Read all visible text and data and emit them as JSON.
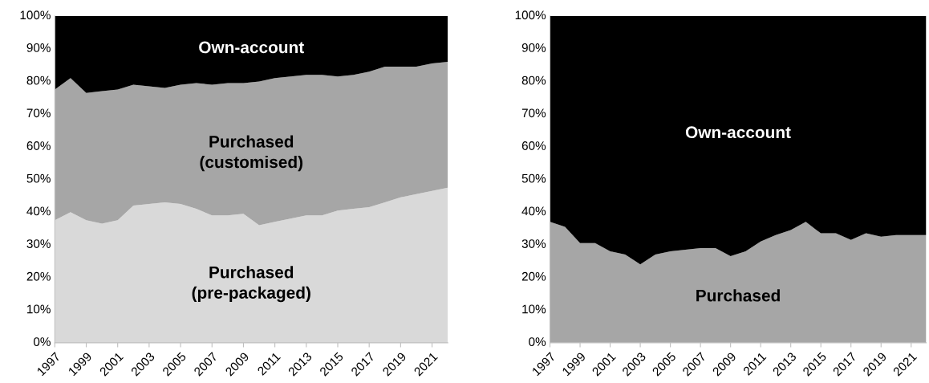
{
  "chart_data": [
    {
      "type": "area",
      "stacked": true,
      "x": [
        1997,
        1998,
        1999,
        2000,
        2001,
        2002,
        2003,
        2004,
        2005,
        2006,
        2007,
        2008,
        2009,
        2010,
        2011,
        2012,
        2013,
        2014,
        2015,
        2016,
        2017,
        2018,
        2019,
        2020,
        2021,
        2022
      ],
      "xlim": [
        1997,
        2022
      ],
      "xticks": [
        1997,
        1999,
        2001,
        2003,
        2005,
        2007,
        2009,
        2011,
        2013,
        2015,
        2017,
        2019,
        2021
      ],
      "ylim": [
        0,
        100
      ],
      "yticks": [
        {
          "value": 0,
          "label": "0%"
        },
        {
          "value": 10,
          "label": "10%"
        },
        {
          "value": 20,
          "label": "20%"
        },
        {
          "value": 30,
          "label": "30%"
        },
        {
          "value": 40,
          "label": "40%"
        },
        {
          "value": 50,
          "label": "50%"
        },
        {
          "value": 60,
          "label": "60%"
        },
        {
          "value": 70,
          "label": "70%"
        },
        {
          "value": 80,
          "label": "80%"
        },
        {
          "value": 90,
          "label": "90%"
        },
        {
          "value": 100,
          "label": "100%"
        }
      ],
      "grid": false,
      "legend": false,
      "series": [
        {
          "name": "Purchased\n(pre-packaged)",
          "color": "#d9d9d9",
          "values": [
            37.5,
            40,
            37.5,
            36.5,
            37.5,
            42,
            42.5,
            43,
            42.5,
            41,
            39,
            39,
            39.5,
            36,
            37,
            38,
            39,
            39,
            40.5,
            41,
            41.5,
            43,
            44.5,
            45.5,
            46.5,
            47.5
          ]
        },
        {
          "name": "Purchased\n(customised)",
          "color": "#a6a6a6",
          "values": [
            40,
            41,
            39,
            40.5,
            40,
            37,
            36,
            35,
            36.5,
            38.5,
            40,
            40.5,
            40,
            44,
            44,
            43.5,
            43,
            43,
            41,
            41,
            41.5,
            41.5,
            40,
            39,
            39,
            38.5
          ]
        },
        {
          "name": "Own-account",
          "color": "#000000",
          "values": [
            22.5,
            19,
            23.5,
            23,
            22.5,
            21,
            21.5,
            22,
            21,
            20.5,
            21,
            20.5,
            20.5,
            20,
            19,
            18.5,
            18,
            18,
            18.5,
            18,
            17,
            15.5,
            15.5,
            15.5,
            14.5,
            14
          ]
        }
      ]
    },
    {
      "type": "area",
      "stacked": true,
      "x": [
        1997,
        1998,
        1999,
        2000,
        2001,
        2002,
        2003,
        2004,
        2005,
        2006,
        2007,
        2008,
        2009,
        2010,
        2011,
        2012,
        2013,
        2014,
        2015,
        2016,
        2017,
        2018,
        2019,
        2020,
        2021,
        2022
      ],
      "xlim": [
        1997,
        2022
      ],
      "xticks": [
        1997,
        1999,
        2001,
        2003,
        2005,
        2007,
        2009,
        2011,
        2013,
        2015,
        2017,
        2019,
        2021
      ],
      "ylim": [
        0,
        100
      ],
      "yticks": [
        {
          "value": 0,
          "label": "0%"
        },
        {
          "value": 10,
          "label": "10%"
        },
        {
          "value": 20,
          "label": "20%"
        },
        {
          "value": 30,
          "label": "30%"
        },
        {
          "value": 40,
          "label": "40%"
        },
        {
          "value": 50,
          "label": "50%"
        },
        {
          "value": 60,
          "label": "60%"
        },
        {
          "value": 70,
          "label": "70%"
        },
        {
          "value": 80,
          "label": "80%"
        },
        {
          "value": 90,
          "label": "90%"
        },
        {
          "value": 100,
          "label": "100%"
        }
      ],
      "grid": false,
      "legend": false,
      "series": [
        {
          "name": "Purchased",
          "color": "#a6a6a6",
          "values": [
            37,
            35.5,
            30.5,
            30.5,
            28,
            27,
            24,
            27,
            28,
            28.5,
            29,
            29,
            26.5,
            28,
            31,
            33,
            34.5,
            37,
            33.5,
            33.5,
            31.5,
            33.5,
            32.5,
            33,
            33,
            33
          ]
        },
        {
          "name": "Own-account",
          "color": "#000000",
          "values": [
            63,
            64.5,
            69.5,
            69.5,
            72,
            73,
            76,
            73,
            72,
            71.5,
            71,
            71,
            73.5,
            72,
            69,
            67,
            65.5,
            63,
            66.5,
            66.5,
            68.5,
            66.5,
            67.5,
            67,
            67,
            67
          ]
        }
      ]
    }
  ]
}
